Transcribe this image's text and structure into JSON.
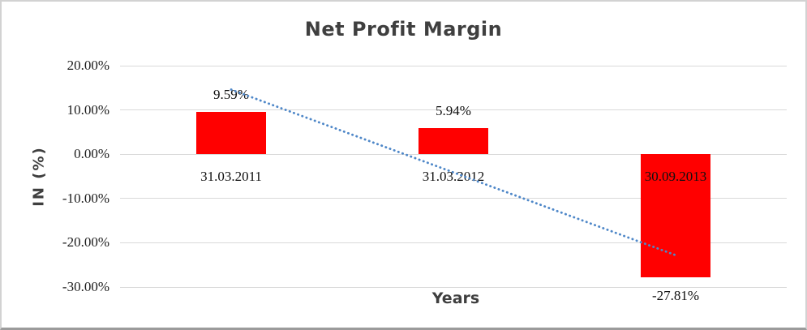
{
  "chart_data": {
    "type": "bar",
    "title": "Net Profit Margin",
    "xlabel": "Years",
    "ylabel": "IN (%)",
    "categories": [
      "31.03.2011",
      "31.03.2012",
      "30.09.2013"
    ],
    "values": [
      9.59,
      5.94,
      -27.81
    ],
    "data_labels": [
      "9.59%",
      "5.94%",
      "-27.81%"
    ],
    "y_tick_labels": [
      "20.00%",
      "10.00%",
      "0.00%",
      "-10.00%",
      "-20.00%",
      "-30.00%"
    ],
    "y_tick_values": [
      20,
      10,
      0,
      -10,
      -20,
      -30
    ],
    "ylim": [
      -30,
      20
    ],
    "grid": true,
    "legend": false,
    "bar_color": "#ff0000",
    "label_color": "#101010",
    "axis_text_color": "#3f3f3f",
    "gridline_color": "#d9d9d9",
    "trendline": {
      "style": "dotted",
      "color": "#4e87c8",
      "from_value": 14.6,
      "to_value": -22.8
    }
  }
}
